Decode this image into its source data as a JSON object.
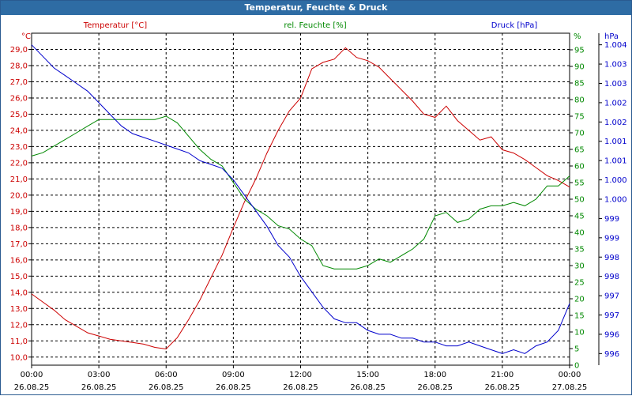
{
  "window": {
    "title": "Temperatur, Feuchte & Druck"
  },
  "colors": {
    "temperature": "#cc0000",
    "humidity": "#008800",
    "pressure": "#0000cc",
    "grid": "#000000",
    "axis_text": "#000000"
  },
  "chart_data": {
    "type": "line",
    "title": "Temperatur, Feuchte & Druck",
    "x_ticks": [
      {
        "time": "00:00",
        "date": "26.08.25"
      },
      {
        "time": "03:00",
        "date": "26.08.25"
      },
      {
        "time": "06:00",
        "date": "26.08.25"
      },
      {
        "time": "09:00",
        "date": "26.08.25"
      },
      {
        "time": "12:00",
        "date": "26.08.25"
      },
      {
        "time": "15:00",
        "date": "26.08.25"
      },
      {
        "time": "18:00",
        "date": "26.08.25"
      },
      {
        "time": "21:00",
        "date": "26.08.25"
      },
      {
        "time": "00:00",
        "date": "27.08.25"
      }
    ],
    "xlim": [
      0,
      24
    ],
    "axes": {
      "temperature": {
        "label": "Temperatur [°C]",
        "unit": "°C",
        "ylim": [
          9.5,
          30.0
        ],
        "ticks": [
          "10,0",
          "11,0",
          "12,0",
          "13,0",
          "14,0",
          "15,0",
          "16,0",
          "17,0",
          "18,0",
          "19,0",
          "20,0",
          "21,0",
          "22,0",
          "23,0",
          "24,0",
          "25,0",
          "26,0",
          "27,0",
          "28,0",
          "29,0"
        ],
        "tick_values": [
          10,
          11,
          12,
          13,
          14,
          15,
          16,
          17,
          18,
          19,
          20,
          21,
          22,
          23,
          24,
          25,
          26,
          27,
          28,
          29
        ]
      },
      "humidity": {
        "label": "rel. Feuchte [%]",
        "unit": "%",
        "ylim": [
          0,
          100
        ],
        "ticks": [
          "0",
          "5",
          "10",
          "15",
          "20",
          "25",
          "30",
          "35",
          "40",
          "45",
          "50",
          "55",
          "60",
          "65",
          "70",
          "75",
          "80",
          "85",
          "90",
          "95"
        ],
        "tick_values": [
          0,
          5,
          10,
          15,
          20,
          25,
          30,
          35,
          40,
          45,
          50,
          55,
          60,
          65,
          70,
          75,
          80,
          85,
          90,
          95
        ]
      },
      "pressure": {
        "label": "Druck [hPa]",
        "unit": "hPa",
        "ylim": [
          995.7,
          1004.3
        ],
        "ticks": [
          "996",
          "996",
          "997",
          "997",
          "998",
          "998",
          "999",
          "999",
          "1.000",
          "1.000",
          "1.001",
          "1.001",
          "1.002",
          "1.002",
          "1.003",
          "1.003",
          "1.004"
        ],
        "tick_values": [
          996.0,
          996.5,
          997.0,
          997.5,
          998.0,
          998.5,
          999.0,
          999.5,
          1000.0,
          1000.5,
          1001.0,
          1001.5,
          1002.0,
          1002.5,
          1003.0,
          1003.5,
          1004.0
        ]
      }
    },
    "series": [
      {
        "name": "Temperatur [°C]",
        "axis": "temperature",
        "color": "#cc0000",
        "x": [
          0,
          0.5,
          1,
          1.5,
          2,
          2.5,
          3,
          3.5,
          4,
          4.5,
          5,
          5.5,
          6,
          6.5,
          7,
          7.5,
          8,
          8.5,
          9,
          9.5,
          10,
          10.5,
          11,
          11.5,
          12,
          12.5,
          13,
          13.5,
          14,
          14.5,
          15,
          15.5,
          16,
          16.5,
          17,
          17.5,
          18,
          18.5,
          19,
          19.5,
          20,
          20.5,
          21,
          21.5,
          22,
          22.5,
          23,
          23.5,
          24
        ],
        "values": [
          13.9,
          13.4,
          12.9,
          12.3,
          11.9,
          11.5,
          11.3,
          11.1,
          11.0,
          10.9,
          10.8,
          10.6,
          10.5,
          11.2,
          12.3,
          13.5,
          14.9,
          16.3,
          18.0,
          19.6,
          21.0,
          22.6,
          24.0,
          25.2,
          26.0,
          27.8,
          28.2,
          28.4,
          29.1,
          28.5,
          28.3,
          27.9,
          27.2,
          26.5,
          25.8,
          25.0,
          24.8,
          25.5,
          24.6,
          24.0,
          23.4,
          23.6,
          22.8,
          22.6,
          22.2,
          21.7,
          21.2,
          20.9,
          20.5
        ]
      },
      {
        "name": "rel. Feuchte [%]",
        "axis": "humidity",
        "color": "#008800",
        "x": [
          0,
          0.5,
          1,
          1.5,
          2,
          2.5,
          3,
          3.5,
          4,
          4.5,
          5,
          5.5,
          6,
          6.5,
          7,
          7.5,
          8,
          8.5,
          9,
          9.5,
          10,
          10.5,
          11,
          11.5,
          12,
          12.5,
          13,
          13.5,
          14,
          14.5,
          15,
          15.5,
          16,
          16.5,
          17,
          17.5,
          18,
          18.5,
          19,
          19.5,
          20,
          20.5,
          21,
          21.5,
          22,
          22.5,
          23,
          23.5,
          24
        ],
        "values": [
          63,
          64,
          66,
          68,
          70,
          72,
          74,
          74,
          74,
          74,
          74,
          74,
          75,
          73,
          69,
          65,
          62,
          60,
          55,
          50,
          47,
          45,
          42,
          41,
          38,
          36,
          30,
          29,
          29,
          29,
          30,
          32,
          31,
          33,
          35,
          38,
          45,
          46,
          43,
          44,
          47,
          48,
          48,
          49,
          48,
          50,
          54,
          54,
          57
        ]
      },
      {
        "name": "Druck [hPa]",
        "axis": "pressure",
        "color": "#0000cc",
        "x": [
          0,
          0.5,
          1,
          1.5,
          2,
          2.5,
          3,
          3.5,
          4,
          4.5,
          5,
          5.5,
          6,
          6.5,
          7,
          7.5,
          8,
          8.5,
          9,
          9.5,
          10,
          10.5,
          11,
          11.5,
          12,
          12.5,
          13,
          13.5,
          14,
          14.5,
          15,
          15.5,
          16,
          16.5,
          17,
          17.5,
          18,
          18.5,
          19,
          19.5,
          20,
          20.5,
          21,
          21.5,
          22,
          22.5,
          23,
          23.5,
          24
        ],
        "values": [
          1004.0,
          1003.7,
          1003.4,
          1003.2,
          1003.0,
          1002.8,
          1002.5,
          1002.2,
          1001.9,
          1001.7,
          1001.6,
          1001.5,
          1001.4,
          1001.3,
          1001.2,
          1001.0,
          1000.9,
          1000.8,
          1000.5,
          1000.1,
          999.7,
          999.3,
          998.8,
          998.5,
          998.0,
          997.6,
          997.2,
          996.9,
          996.8,
          996.8,
          996.6,
          996.5,
          996.5,
          996.4,
          996.4,
          996.3,
          996.3,
          996.2,
          996.2,
          996.3,
          996.2,
          996.1,
          996.0,
          996.1,
          996.0,
          996.2,
          996.3,
          996.6,
          997.3
        ]
      }
    ]
  }
}
